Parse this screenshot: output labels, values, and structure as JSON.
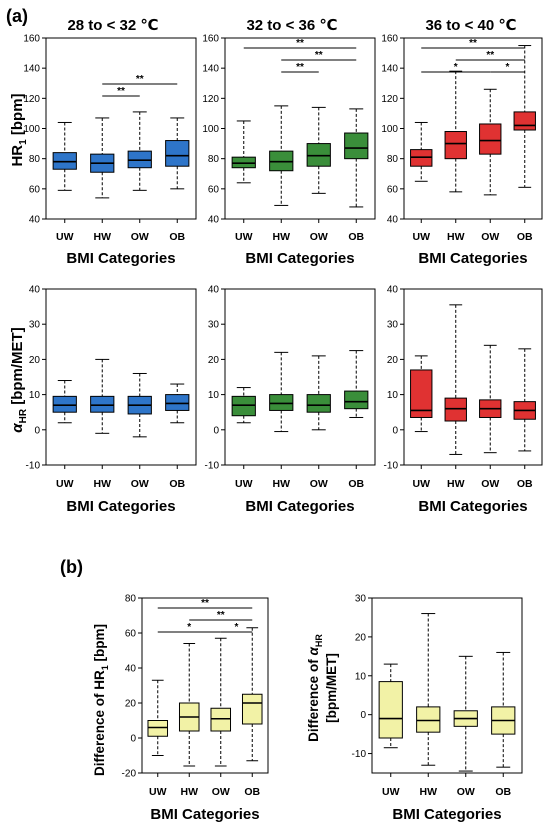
{
  "figure": {
    "panel_a_label": "(a)",
    "panel_b_label": "(b)"
  },
  "colors": {
    "blue": "#2e75c9",
    "green": "#3a8e3a",
    "red": "#e03232",
    "yellow": "#f2f2a6",
    "title_blue": "#1f5fbf",
    "title_green": "#3a8e3a",
    "title_red": "#e02020"
  },
  "chart_data": [
    {
      "id": "a-hr-28",
      "type": "box",
      "title": "28 to < 32 ℃",
      "xlabel": "BMI Categories",
      "ylabel": "HR₁ [bpm]",
      "ylim": [
        40,
        160
      ],
      "yticks": [
        40,
        60,
        80,
        100,
        120,
        140,
        160
      ],
      "categories": [
        "UW",
        "HW",
        "OW",
        "OB"
      ],
      "boxes": [
        {
          "min": 59,
          "q1": 73,
          "median": 78,
          "q3": 84,
          "max": 104
        },
        {
          "min": 54,
          "q1": 71,
          "median": 77,
          "q3": 83,
          "max": 107
        },
        {
          "min": 59,
          "q1": 74,
          "median": 79,
          "q3": 85,
          "max": 111
        },
        {
          "min": 60,
          "q1": 75,
          "median": 82,
          "q3": 92,
          "max": 107
        }
      ],
      "significance": [
        {
          "from": 1,
          "to": 3,
          "label": "**",
          "level": 1
        },
        {
          "from": 1,
          "to": 2,
          "label": "**",
          "level": 0
        }
      ]
    },
    {
      "id": "a-hr-32",
      "type": "box",
      "title": "32 to < 36 ℃",
      "xlabel": "BMI Categories",
      "ylim": [
        40,
        160
      ],
      "yticks": [
        40,
        60,
        80,
        100,
        120,
        140,
        160
      ],
      "categories": [
        "UW",
        "HW",
        "OW",
        "OB"
      ],
      "boxes": [
        {
          "min": 64,
          "q1": 74,
          "median": 77,
          "q3": 81,
          "max": 105
        },
        {
          "min": 49,
          "q1": 72,
          "median": 78,
          "q3": 85,
          "max": 115
        },
        {
          "min": 57,
          "q1": 75,
          "median": 82,
          "q3": 90,
          "max": 114
        },
        {
          "min": 48,
          "q1": 80,
          "median": 87,
          "q3": 97,
          "max": 113
        }
      ],
      "significance": [
        {
          "from": 0,
          "to": 3,
          "label": "**",
          "level": 2
        },
        {
          "from": 1,
          "to": 3,
          "label": "**",
          "level": 1
        },
        {
          "from": 1,
          "to": 2,
          "label": "**",
          "level": 0
        }
      ]
    },
    {
      "id": "a-hr-36",
      "type": "box",
      "title": "36 to < 40 ℃",
      "xlabel": "BMI Categories",
      "ylim": [
        40,
        160
      ],
      "yticks": [
        40,
        60,
        80,
        100,
        120,
        140,
        160
      ],
      "categories": [
        "UW",
        "HW",
        "OW",
        "OB"
      ],
      "boxes": [
        {
          "min": 65,
          "q1": 75,
          "median": 81,
          "q3": 86,
          "max": 104
        },
        {
          "min": 58,
          "q1": 80,
          "median": 90,
          "q3": 98,
          "max": 138
        },
        {
          "min": 56,
          "q1": 83,
          "median": 92,
          "q3": 103,
          "max": 126
        },
        {
          "min": 61,
          "q1": 99,
          "median": 102,
          "q3": 111,
          "max": 155
        }
      ],
      "significance": [
        {
          "from": 0,
          "to": 3,
          "label": "**",
          "level": 2
        },
        {
          "from": 1,
          "to": 3,
          "label": "**",
          "level": 1
        },
        {
          "from": 0,
          "to": 2,
          "label": "*",
          "level": 0
        },
        {
          "from": 2,
          "to": 3,
          "label": "*",
          "level": 0
        }
      ]
    },
    {
      "id": "a-alpha-28",
      "type": "box",
      "xlabel": "BMI Categories",
      "ylabel": "αHR [bpm/MET]",
      "ylim": [
        -10,
        40
      ],
      "yticks": [
        -10,
        0,
        10,
        20,
        30,
        40
      ],
      "categories": [
        "UW",
        "HW",
        "OW",
        "OB"
      ],
      "boxes": [
        {
          "min": 2,
          "q1": 5,
          "median": 7,
          "q3": 9.5,
          "max": 14
        },
        {
          "min": -1,
          "q1": 5,
          "median": 7,
          "q3": 9.5,
          "max": 20
        },
        {
          "min": -2,
          "q1": 4.5,
          "median": 7,
          "q3": 9.5,
          "max": 16
        },
        {
          "min": 2,
          "q1": 5.5,
          "median": 7.5,
          "q3": 10,
          "max": 13
        }
      ],
      "significance": []
    },
    {
      "id": "a-alpha-32",
      "type": "box",
      "xlabel": "BMI Categories",
      "ylim": [
        -10,
        40
      ],
      "yticks": [
        -10,
        0,
        10,
        20,
        30,
        40
      ],
      "categories": [
        "UW",
        "HW",
        "OW",
        "OB"
      ],
      "boxes": [
        {
          "min": 2,
          "q1": 4,
          "median": 7,
          "q3": 9.5,
          "max": 12
        },
        {
          "min": -0.5,
          "q1": 5.5,
          "median": 7.5,
          "q3": 10,
          "max": 22
        },
        {
          "min": 0,
          "q1": 5,
          "median": 7,
          "q3": 10,
          "max": 21
        },
        {
          "min": 3.5,
          "q1": 6,
          "median": 8,
          "q3": 11,
          "max": 22.5
        }
      ],
      "significance": []
    },
    {
      "id": "a-alpha-36",
      "type": "box",
      "xlabel": "BMI Categories",
      "ylim": [
        -10,
        40
      ],
      "yticks": [
        -10,
        0,
        10,
        20,
        30,
        40
      ],
      "categories": [
        "UW",
        "HW",
        "OW",
        "OB"
      ],
      "boxes": [
        {
          "min": -0.5,
          "q1": 3.5,
          "median": 5.5,
          "q3": 17,
          "max": 21
        },
        {
          "min": -7,
          "q1": 2.5,
          "median": 6,
          "q3": 9,
          "max": 35.5
        },
        {
          "min": -6.5,
          "q1": 3.5,
          "median": 6,
          "q3": 8.5,
          "max": 24
        },
        {
          "min": -6,
          "q1": 3,
          "median": 5.5,
          "q3": 8,
          "max": 23
        }
      ],
      "significance": []
    },
    {
      "id": "b-hr",
      "type": "box",
      "xlabel": "BMI Categories",
      "ylabel": "Difference of HR₁ [bpm]",
      "ylim": [
        -20,
        80
      ],
      "yticks": [
        -20,
        0,
        20,
        40,
        60,
        80
      ],
      "categories": [
        "UW",
        "HW",
        "OW",
        "OB"
      ],
      "boxes": [
        {
          "min": -10,
          "q1": 1,
          "median": 6,
          "q3": 10,
          "max": 33
        },
        {
          "min": -16,
          "q1": 4,
          "median": 12,
          "q3": 20,
          "max": 54
        },
        {
          "min": -16,
          "q1": 4,
          "median": 11,
          "q3": 17,
          "max": 57
        },
        {
          "min": -13,
          "q1": 8,
          "median": 20,
          "q3": 25,
          "max": 63
        }
      ],
      "significance": [
        {
          "from": 0,
          "to": 3,
          "label": "**",
          "level": 2
        },
        {
          "from": 1,
          "to": 3,
          "label": "**",
          "level": 1
        },
        {
          "from": 0,
          "to": 2,
          "label": "*",
          "level": 0
        },
        {
          "from": 2,
          "to": 3,
          "label": "*",
          "level": 0
        }
      ]
    },
    {
      "id": "b-alpha",
      "type": "box",
      "xlabel": "BMI Categories",
      "ylabel": "Difference of αHR [bpm/MET]",
      "ylim": [
        -15,
        30
      ],
      "yticks": [
        -10,
        0,
        10,
        20,
        30
      ],
      "categories": [
        "UW",
        "HW",
        "OW",
        "OB"
      ],
      "boxes": [
        {
          "min": -8.5,
          "q1": -6,
          "median": -1,
          "q3": 8.5,
          "max": 13
        },
        {
          "min": -13,
          "q1": -4.5,
          "median": -1.5,
          "q3": 2,
          "max": 26
        },
        {
          "min": -14.5,
          "q1": -3,
          "median": -1,
          "q3": 1,
          "max": 15
        },
        {
          "min": -13.5,
          "q1": -5,
          "median": -1.5,
          "q3": 2,
          "max": 16
        }
      ],
      "significance": []
    }
  ]
}
